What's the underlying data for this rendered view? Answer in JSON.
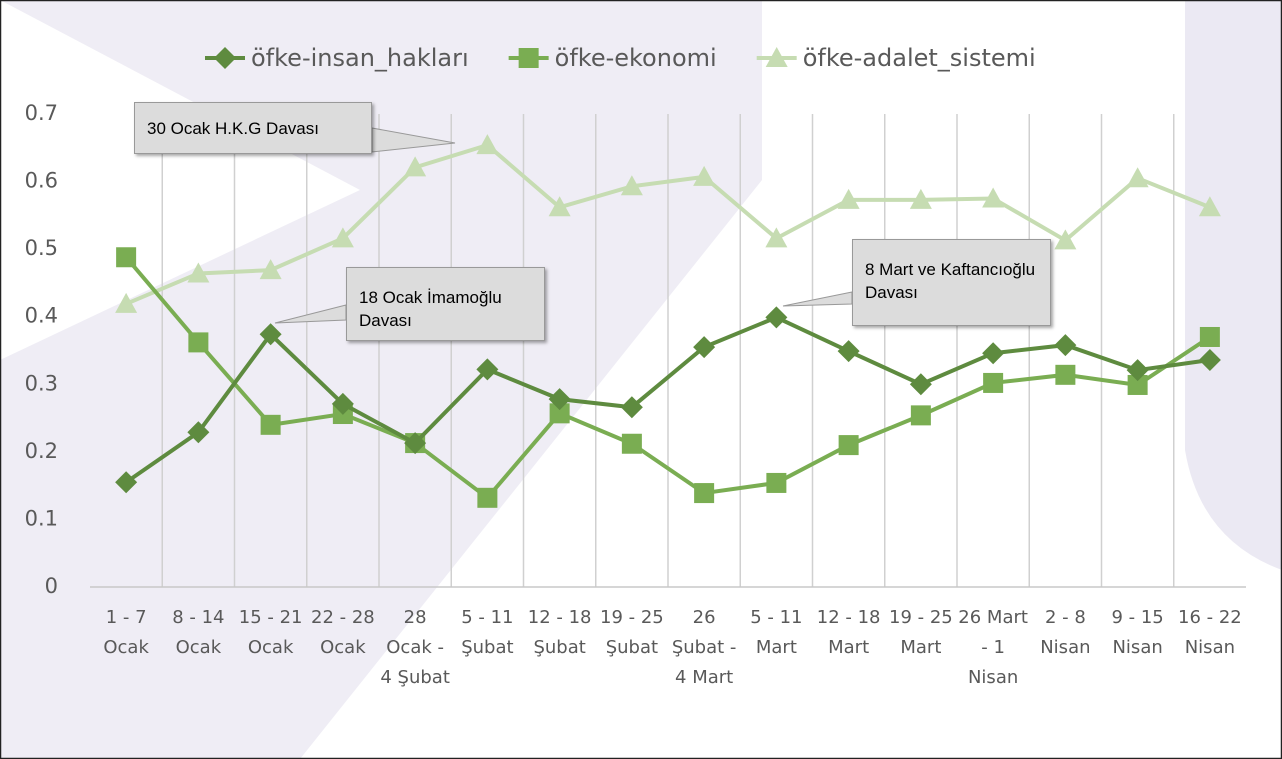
{
  "chart_data": {
    "type": "line",
    "categories": [
      "1 - 7 Ocak",
      "8 - 14 Ocak",
      "15 - 21 Ocak",
      "22 - 28 Ocak",
      "28 Ocak - 4 Şubat",
      "5 - 11 Şubat",
      "12 - 18 Şubat",
      "19 - 25 Şubat",
      "26 Şubat - 4 Mart",
      "5 - 11 Mart",
      "12 - 18 Mart",
      "19 - 25 Mart",
      "26 Mart - 1 Nisan",
      "2 - 8 Nisan",
      "9 - 15 Nisan",
      "16 - 22 Nisan"
    ],
    "series": [
      {
        "name": "öfke-insan_hakları",
        "color": "#5e8b3f",
        "marker": "diamond",
        "values": [
          0.155,
          0.229,
          0.374,
          0.271,
          0.213,
          0.322,
          0.278,
          0.266,
          0.355,
          0.399,
          0.349,
          0.3,
          0.346,
          0.358,
          0.321,
          0.336
        ]
      },
      {
        "name": "öfke-ekonomi",
        "color": "#7aad52",
        "marker": "square",
        "values": [
          0.488,
          0.362,
          0.24,
          0.256,
          0.213,
          0.132,
          0.257,
          0.212,
          0.139,
          0.154,
          0.21,
          0.254,
          0.302,
          0.314,
          0.299,
          0.37
        ]
      },
      {
        "name": "öfke-adalet_sistemi",
        "color": "#c6dcb2",
        "marker": "triangle",
        "values": [
          0.419,
          0.464,
          0.469,
          0.516,
          0.621,
          0.654,
          0.562,
          0.593,
          0.607,
          0.516,
          0.573,
          0.573,
          0.575,
          0.513,
          0.605,
          0.562
        ]
      }
    ],
    "ylim": [
      0,
      0.7
    ],
    "yticks": [
      0,
      0.1,
      0.2,
      0.3,
      0.4,
      0.5,
      0.6,
      0.7
    ],
    "legend": "top",
    "annotations": [
      "30 Ocak H.K.G Davası",
      "18 Ocak İmamoğlu Davası",
      "8 Mart ve Kaftancıoğlu Davası"
    ]
  }
}
